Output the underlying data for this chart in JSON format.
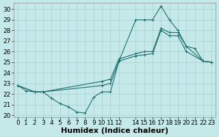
{
  "xlabel": "Humidex (Indice chaleur)",
  "background_color": "#c5e8e8",
  "grid_color": "#a8d0d0",
  "line_color": "#1a6b6b",
  "xlim": [
    -0.5,
    23.5
  ],
  "ylim": [
    19.8,
    30.6
  ],
  "xticks": [
    0,
    1,
    2,
    3,
    4,
    5,
    6,
    7,
    8,
    9,
    10,
    11,
    12,
    14,
    15,
    16,
    17,
    18,
    19,
    20,
    21,
    22,
    23
  ],
  "yticks": [
    20,
    21,
    22,
    23,
    24,
    25,
    26,
    27,
    28,
    29,
    30
  ],
  "line1_x": [
    0,
    1,
    2,
    3,
    4,
    5,
    6,
    7,
    8,
    9,
    10,
    11,
    12,
    14,
    15,
    16,
    17,
    18,
    19,
    20,
    21,
    22,
    23
  ],
  "line1_y": [
    22.8,
    22.3,
    22.2,
    22.2,
    21.6,
    21.1,
    20.8,
    20.3,
    20.2,
    21.7,
    22.2,
    22.2,
    25.1,
    29.0,
    29.0,
    29.0,
    30.3,
    29.0,
    28.0,
    26.5,
    26.3,
    25.1,
    25.0
  ],
  "line2_x": [
    0,
    2,
    3,
    10,
    11,
    12,
    14,
    15,
    16,
    17,
    18,
    19,
    20,
    22,
    23
  ],
  "line2_y": [
    22.8,
    22.2,
    22.2,
    22.8,
    23.0,
    25.1,
    25.6,
    25.7,
    25.8,
    28.0,
    27.5,
    27.5,
    26.0,
    25.1,
    25.0
  ],
  "line3_x": [
    0,
    2,
    3,
    10,
    11,
    12,
    14,
    15,
    16,
    17,
    18,
    19,
    20,
    22,
    23
  ],
  "line3_y": [
    22.8,
    22.2,
    22.2,
    23.2,
    23.4,
    25.3,
    25.8,
    26.0,
    26.0,
    28.2,
    27.8,
    27.8,
    26.5,
    25.1,
    25.0
  ],
  "xlabel_fontsize": 8,
  "tick_fontsize": 6.5
}
